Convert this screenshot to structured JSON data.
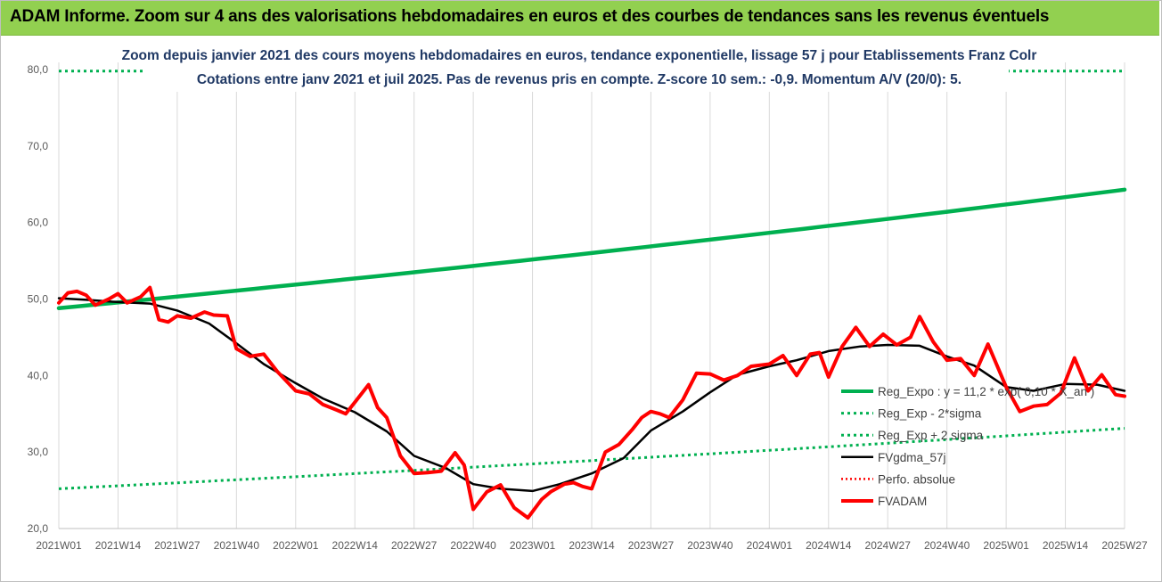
{
  "header": {
    "title": "ADAM Informe. Zoom sur 4 ans des valorisations hebdomadaires en euros et des courbes de tendances sans les revenus éventuels"
  },
  "chart_data": {
    "type": "line",
    "title_line1": "Zoom depuis janvier 2021 des cours moyens hebdomadaires en euros, tendance exponentielle, lissage 57 j pour Etablissements Franz Colr",
    "title_line2": "Cotations entre janv 2021 et juil 2025. Pas de revenus pris en compte. Z-score 10 sem.: -0,9. Momentum A/V (20/0): 5.",
    "ylim": [
      20,
      80
    ],
    "yticks": [
      "20,0",
      "30,0",
      "40,0",
      "50,0",
      "60,0",
      "70,0",
      "80,0"
    ],
    "xticks": [
      "2021W01",
      "2021W14",
      "2021W27",
      "2021W40",
      "2022W01",
      "2022W14",
      "2022W27",
      "2022W40",
      "2023W01",
      "2023W14",
      "2023W27",
      "2023W40",
      "2024W01",
      "2024W14",
      "2024W27",
      "2024W40",
      "2025W01",
      "2025W14",
      "2025W27"
    ],
    "grid": "vertical",
    "legend_position": "right",
    "colors": {
      "reg_expo": "#00b050",
      "sigma": "#00b050",
      "smooth": "#000000",
      "perfo": "#ff0000",
      "fvadam": "#ff0000"
    },
    "series": [
      {
        "name": "Reg_Expo : y = 11,2 * exp( 0,10 * X_an )",
        "style": "solid-thick",
        "x": [
          "2021W01",
          "2025W27"
        ],
        "values": [
          48.8,
          64.3
        ]
      },
      {
        "name": "Reg_Exp - 2*sigma",
        "style": "dotted",
        "x": [
          "2021W01",
          "2025W27"
        ],
        "values": [
          25.2,
          33.1
        ]
      },
      {
        "name": "Reg_Exp + 2 sigma",
        "style": "dotted",
        "x": [
          "2021W01",
          "2025W27"
        ],
        "values": [
          79.8,
          79.8
        ]
      },
      {
        "name": "FVgdma_57j",
        "style": "solid",
        "x": [
          "2021W01",
          "2021W07",
          "2021W14",
          "2021W21",
          "2021W27",
          "2021W34",
          "2021W40",
          "2021W46",
          "2022W01",
          "2022W07",
          "2022W14",
          "2022W21",
          "2022W27",
          "2022W34",
          "2022W40",
          "2022W46",
          "2023W01",
          "2023W07",
          "2023W14",
          "2023W21",
          "2023W27",
          "2023W34",
          "2023W40",
          "2023W46",
          "2024W01",
          "2024W07",
          "2024W14",
          "2024W21",
          "2024W27",
          "2024W34",
          "2024W40",
          "2024W46",
          "2025W01",
          "2025W07",
          "2025W14",
          "2025W21",
          "2025W27"
        ],
        "values": [
          50.1,
          49.9,
          49.6,
          49.4,
          48.5,
          46.8,
          44.2,
          41.5,
          39.0,
          37.0,
          35.2,
          32.7,
          29.5,
          27.9,
          25.8,
          25.2,
          24.9,
          25.8,
          27.2,
          29.2,
          32.8,
          35.3,
          37.8,
          40.1,
          41.2,
          42.0,
          43.2,
          43.8,
          44.0,
          43.9,
          42.5,
          41.3,
          38.5,
          38.0,
          38.9,
          38.8,
          38.0
        ]
      },
      {
        "name": "Perfo. absolue",
        "style": "dotted",
        "x": [],
        "values": []
      },
      {
        "name": "FVADAM",
        "style": "solid-thick",
        "x": [
          "2021W01",
          "2021W03",
          "2021W05",
          "2021W07",
          "2021W09",
          "2021W12",
          "2021W14",
          "2021W16",
          "2021W19",
          "2021W21",
          "2021W23",
          "2021W25",
          "2021W27",
          "2021W30",
          "2021W33",
          "2021W35",
          "2021W38",
          "2021W40",
          "2021W43",
          "2021W46",
          "2021W49",
          "2022W01",
          "2022W04",
          "2022W07",
          "2022W10",
          "2022W12",
          "2022W14",
          "2022W17",
          "2022W19",
          "2022W21",
          "2022W24",
          "2022W27",
          "2022W30",
          "2022W33",
          "2022W36",
          "2022W38",
          "2022W40",
          "2022W43",
          "2022W46",
          "2022W49",
          "2022W52",
          "2023W01",
          "2023W03",
          "2023W05",
          "2023W08",
          "2023W10",
          "2023W12",
          "2023W14",
          "2023W17",
          "2023W20",
          "2023W23",
          "2023W25",
          "2023W27",
          "2023W29",
          "2023W31",
          "2023W34",
          "2023W37",
          "2023W40",
          "2023W43",
          "2023W46",
          "2023W49",
          "2024W01",
          "2024W04",
          "2024W07",
          "2024W10",
          "2024W12",
          "2024W14",
          "2024W17",
          "2024W20",
          "2024W23",
          "2024W26",
          "2024W29",
          "2024W32",
          "2024W34",
          "2024W37",
          "2024W40",
          "2024W43",
          "2024W46",
          "2024W49",
          "2025W01",
          "2025W04",
          "2025W07",
          "2025W10",
          "2025W13",
          "2025W16",
          "2025W19",
          "2025W22",
          "2025W25",
          "2025W27"
        ],
        "values": [
          49.5,
          50.8,
          51.0,
          50.5,
          49.2,
          50.0,
          50.7,
          49.5,
          50.3,
          51.5,
          47.3,
          47.0,
          47.8,
          47.5,
          48.3,
          47.9,
          47.8,
          43.5,
          42.5,
          42.8,
          40.5,
          38.0,
          37.6,
          36.2,
          35.5,
          35.0,
          36.5,
          38.8,
          35.8,
          34.5,
          29.5,
          27.2,
          27.3,
          27.5,
          29.9,
          28.3,
          22.5,
          24.8,
          25.7,
          22.7,
          21.4,
          22.2,
          23.8,
          24.8,
          25.8,
          26.0,
          25.5,
          25.2,
          30.0,
          31.0,
          33.0,
          34.5,
          35.3,
          35.0,
          34.5,
          36.8,
          40.3,
          40.2,
          39.4,
          40.0,
          41.2,
          41.5,
          42.6,
          40.0,
          42.8,
          43.0,
          39.8,
          43.8,
          46.3,
          43.8,
          45.4,
          44.0,
          45.0,
          47.7,
          44.4,
          42.0,
          42.2,
          40.0,
          44.1,
          38.5,
          35.3,
          36.0,
          36.2,
          37.7,
          42.3,
          38.0,
          40.1,
          37.5,
          37.3
        ]
      }
    ]
  }
}
